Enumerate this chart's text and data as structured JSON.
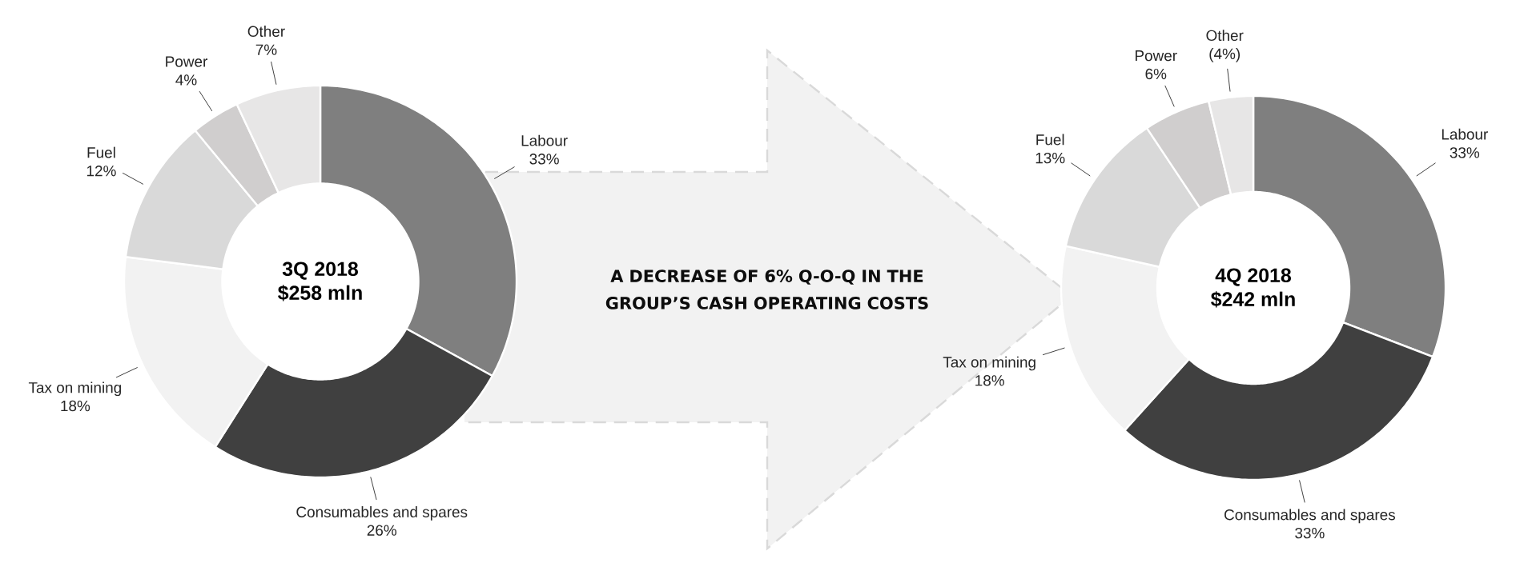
{
  "chart_data": [
    {
      "type": "donut",
      "title": "3Q 2018",
      "subtitle": "$258 mln",
      "categories": [
        "Labour",
        "Consumables and spares",
        "Tax on mining",
        "Fuel",
        "Power",
        "Other"
      ],
      "values": [
        33,
        26,
        18,
        12,
        4,
        7
      ],
      "value_labels": [
        "33%",
        "26%",
        "18%",
        "12%",
        "4%",
        "7%"
      ],
      "colors": [
        "#7f7f7f",
        "#404040",
        "#f2f2f2",
        "#d9d9d9",
        "#d0cece",
        "#e7e6e6"
      ]
    },
    {
      "type": "other",
      "annotations": [
        "A DECREASE OF 6% Q-O-Q IN THE GROUP’S CASH OPERATING COSTS"
      ]
    },
    {
      "type": "donut",
      "title": "4Q 2018",
      "subtitle": "$242 mln",
      "categories": [
        "Labour",
        "Consumables and spares",
        "Tax on mining",
        "Fuel",
        "Power",
        "Other"
      ],
      "values": [
        33,
        33,
        18,
        13,
        6,
        4
      ],
      "value_labels": [
        "33%",
        "33%",
        "18%",
        "13%",
        "6%",
        "(4%)"
      ],
      "colors": [
        "#7f7f7f",
        "#404040",
        "#f2f2f2",
        "#d9d9d9",
        "#d0cece",
        "#e7e6e6"
      ]
    }
  ]
}
